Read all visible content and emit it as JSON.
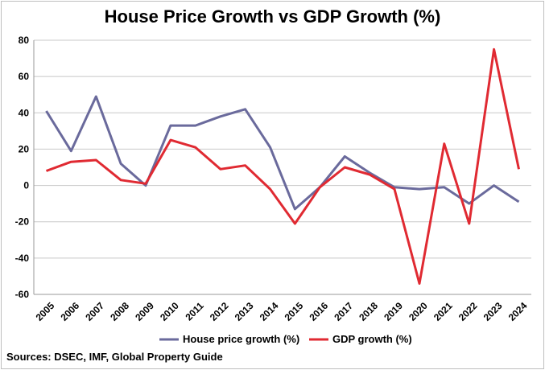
{
  "chart_data": {
    "type": "line",
    "title": "House Price Growth vs GDP Growth (%)",
    "source": "Sources: DSEC, IMF, Global Property Guide",
    "categories": [
      "2005",
      "2006",
      "2007",
      "2008",
      "2009",
      "2010",
      "2011",
      "2012",
      "2013",
      "2014",
      "2015",
      "2016",
      "2017",
      "2018",
      "2019",
      "2020",
      "2021",
      "2022",
      "2023",
      "2024"
    ],
    "series": [
      {
        "name": "House price growth (%)",
        "color": "#6a6a9c",
        "values": [
          41,
          19,
          49,
          12,
          0,
          33,
          33,
          38,
          42,
          21,
          -13,
          -1,
          16,
          7,
          -1,
          -2,
          -1,
          -10,
          0,
          -9
        ]
      },
      {
        "name": "GDP growth (%)",
        "color": "#e02a32",
        "values": [
          8,
          13,
          14,
          3,
          1,
          25,
          21,
          9,
          11,
          -2,
          -21,
          -1,
          10,
          6,
          -2,
          -54,
          23,
          -21,
          75,
          9
        ]
      }
    ],
    "ylim": [
      -60,
      80
    ],
    "yticks": [
      80,
      60,
      40,
      20,
      0,
      -20,
      -40,
      -60
    ],
    "grid": true,
    "legend": "bottom"
  }
}
